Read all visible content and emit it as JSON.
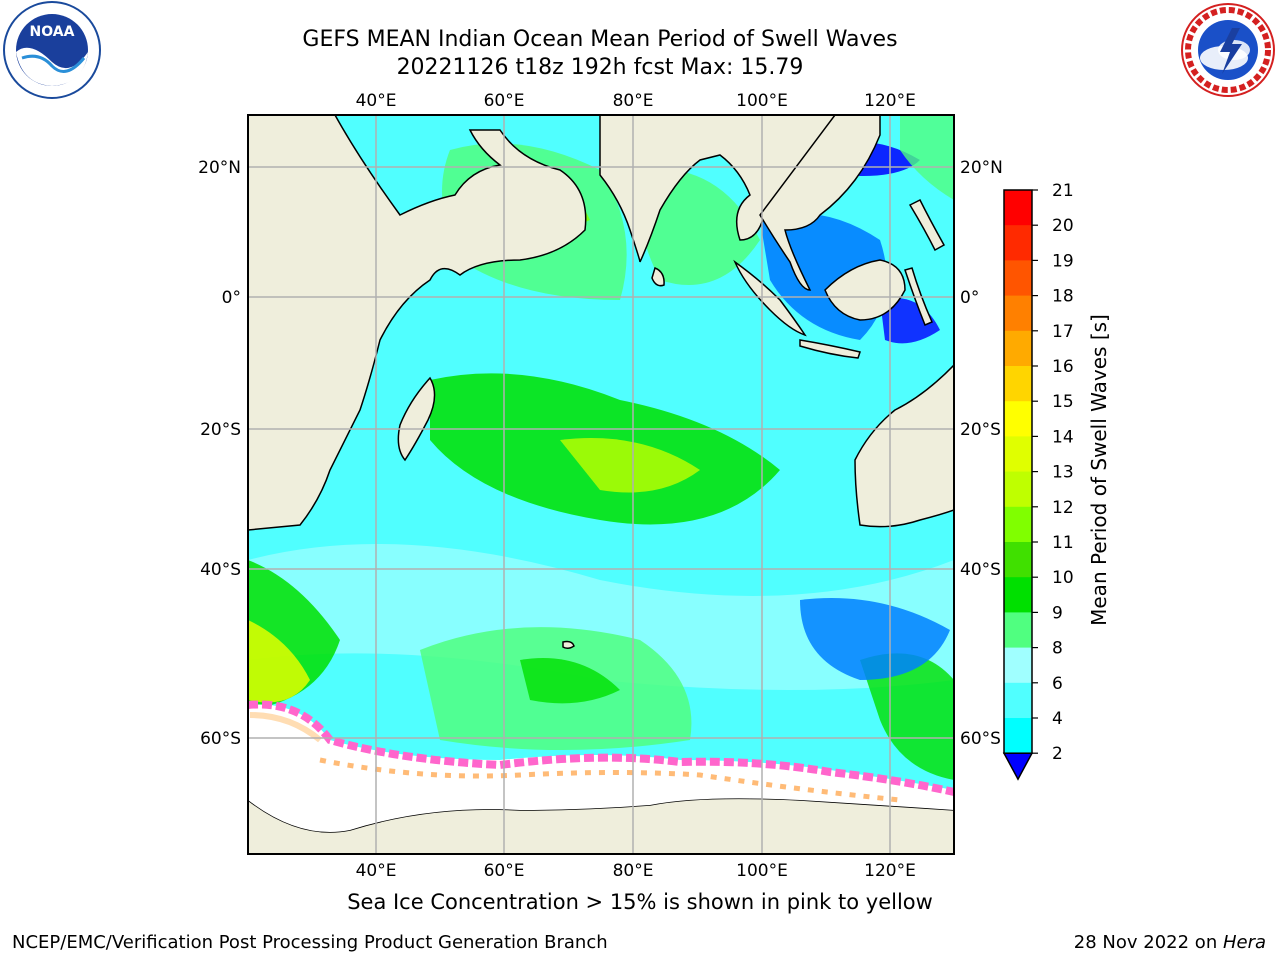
{
  "header": {
    "title_line1": "GEFS MEAN Indian Ocean Mean Period of Swell Waves",
    "title_line2": "20221126 t18z 192h fcst   Max: 15.79"
  },
  "logos": {
    "noaa": {
      "text": "NOAA",
      "ring_text": "NATIONAL OCEANIC AND ATMOSPHERIC ADMINISTRATION · U.S. DEPARTMENT OF COMMERCE"
    },
    "nws": {
      "ring_text": "NATIONAL WEATHER SERVICE"
    }
  },
  "map": {
    "lon_ticks": [
      "40°E",
      "60°E",
      "80°E",
      "100°E",
      "120°E"
    ],
    "lat_ticks": [
      "20°N",
      "0°",
      "20°S",
      "40°S",
      "60°S"
    ],
    "land_color": "#efeedc",
    "ice_color": "#ffffff",
    "ice_pink": "#ff66cc",
    "grid_color": "#b0b0b0"
  },
  "colorbar": {
    "label": "Mean Period of Swell Waves [s]",
    "ticks": [
      "21",
      "20",
      "19",
      "18",
      "17",
      "16",
      "15",
      "14",
      "13",
      "12",
      "11",
      "10",
      "9",
      "8",
      "6",
      "4",
      "2"
    ],
    "colors": [
      "#ff0000",
      "#ff2a00",
      "#ff5500",
      "#ff8000",
      "#ffaa00",
      "#ffd500",
      "#ffff00",
      "#e0ff00",
      "#bfff00",
      "#80ff00",
      "#40e000",
      "#00e000",
      "#50ff80",
      "#a0ffff",
      "#50ffff",
      "#00ffff",
      "#0080ff"
    ],
    "extend_color": "#0000ff"
  },
  "footer": {
    "note": "Sea Ice Concentration > 15% is shown in pink to yellow",
    "credit": "NCEP/EMC/Verification Post Processing Product Generation Branch",
    "date_prefix": "28 Nov 2022 on ",
    "date_system": "Hera"
  }
}
